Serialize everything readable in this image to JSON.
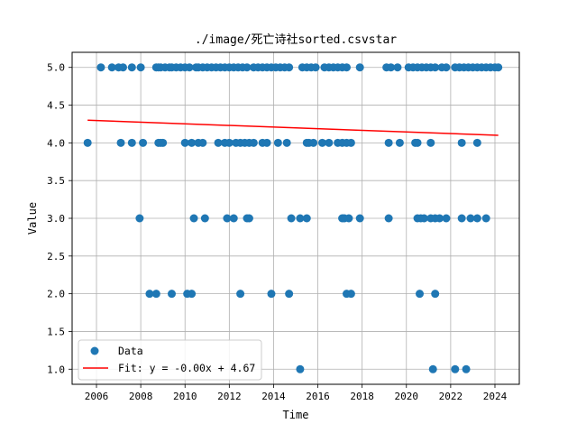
{
  "chart_data": {
    "type": "scatter",
    "title": "./image/死亡诗社sorted.csvstar",
    "xlabel": "Time",
    "ylabel": "Value",
    "xlim": [
      2004.9,
      2025.1
    ],
    "ylim": [
      0.8,
      5.2
    ],
    "x_ticks": [
      2006,
      2008,
      2010,
      2012,
      2014,
      2016,
      2018,
      2020,
      2022,
      2024
    ],
    "y_ticks": [
      1.0,
      1.5,
      2.0,
      2.5,
      3.0,
      3.5,
      4.0,
      4.5,
      5.0
    ],
    "grid": true,
    "legend": {
      "position": "lower left",
      "entries": [
        "Data",
        "Fit: y = -0.00x + 4.67"
      ]
    },
    "series": [
      {
        "name": "Data",
        "color": "#1f77b4",
        "points": [
          [
            2005.6,
            4
          ],
          [
            2006.2,
            5
          ],
          [
            2006.7,
            5
          ],
          [
            2007.0,
            5
          ],
          [
            2007.2,
            5
          ],
          [
            2007.6,
            5
          ],
          [
            2008.0,
            5
          ],
          [
            2008.7,
            5
          ],
          [
            2008.8,
            5
          ],
          [
            2008.9,
            5
          ],
          [
            2009.1,
            5
          ],
          [
            2009.3,
            5
          ],
          [
            2009.4,
            5
          ],
          [
            2009.6,
            5
          ],
          [
            2009.8,
            5
          ],
          [
            2010.0,
            5
          ],
          [
            2010.2,
            5
          ],
          [
            2010.5,
            5
          ],
          [
            2010.6,
            5
          ],
          [
            2010.8,
            5
          ],
          [
            2011.0,
            5
          ],
          [
            2011.2,
            5
          ],
          [
            2011.4,
            5
          ],
          [
            2011.6,
            5
          ],
          [
            2011.8,
            5
          ],
          [
            2012.0,
            5
          ],
          [
            2012.2,
            5
          ],
          [
            2012.4,
            5
          ],
          [
            2012.6,
            5
          ],
          [
            2012.8,
            5
          ],
          [
            2013.1,
            5
          ],
          [
            2013.3,
            5
          ],
          [
            2013.5,
            5
          ],
          [
            2013.7,
            5
          ],
          [
            2013.9,
            5
          ],
          [
            2014.1,
            5
          ],
          [
            2014.3,
            5
          ],
          [
            2014.5,
            5
          ],
          [
            2014.7,
            5
          ],
          [
            2015.3,
            5
          ],
          [
            2015.5,
            5
          ],
          [
            2015.7,
            5
          ],
          [
            2015.9,
            5
          ],
          [
            2016.3,
            5
          ],
          [
            2016.5,
            5
          ],
          [
            2016.7,
            5
          ],
          [
            2016.9,
            5
          ],
          [
            2017.1,
            5
          ],
          [
            2017.3,
            5
          ],
          [
            2017.9,
            5
          ],
          [
            2019.1,
            5
          ],
          [
            2019.3,
            5
          ],
          [
            2019.6,
            5
          ],
          [
            2020.1,
            5
          ],
          [
            2020.3,
            5
          ],
          [
            2020.5,
            5
          ],
          [
            2020.7,
            5
          ],
          [
            2020.9,
            5
          ],
          [
            2021.1,
            5
          ],
          [
            2021.3,
            5
          ],
          [
            2021.6,
            5
          ],
          [
            2021.8,
            5
          ],
          [
            2022.2,
            5
          ],
          [
            2022.4,
            5
          ],
          [
            2022.6,
            5
          ],
          [
            2022.8,
            5
          ],
          [
            2023.0,
            5
          ],
          [
            2023.2,
            5
          ],
          [
            2023.4,
            5
          ],
          [
            2023.6,
            5
          ],
          [
            2023.8,
            5
          ],
          [
            2024.0,
            5
          ],
          [
            2024.15,
            5
          ],
          [
            2007.1,
            4
          ],
          [
            2007.6,
            4
          ],
          [
            2008.1,
            4
          ],
          [
            2008.8,
            4
          ],
          [
            2008.9,
            4
          ],
          [
            2009.0,
            4
          ],
          [
            2010.0,
            4
          ],
          [
            2010.3,
            4
          ],
          [
            2010.6,
            4
          ],
          [
            2010.8,
            4
          ],
          [
            2011.5,
            4
          ],
          [
            2011.8,
            4
          ],
          [
            2012.0,
            4
          ],
          [
            2012.3,
            4
          ],
          [
            2012.5,
            4
          ],
          [
            2012.7,
            4
          ],
          [
            2012.9,
            4
          ],
          [
            2013.1,
            4
          ],
          [
            2013.5,
            4
          ],
          [
            2013.7,
            4
          ],
          [
            2014.2,
            4
          ],
          [
            2014.6,
            4
          ],
          [
            2015.5,
            4
          ],
          [
            2015.6,
            4
          ],
          [
            2015.8,
            4
          ],
          [
            2016.2,
            4
          ],
          [
            2016.5,
            4
          ],
          [
            2016.9,
            4
          ],
          [
            2017.1,
            4
          ],
          [
            2017.3,
            4
          ],
          [
            2017.5,
            4
          ],
          [
            2019.2,
            4
          ],
          [
            2019.7,
            4
          ],
          [
            2020.4,
            4
          ],
          [
            2020.5,
            4
          ],
          [
            2021.1,
            4
          ],
          [
            2022.5,
            4
          ],
          [
            2023.2,
            4
          ],
          [
            2007.95,
            3
          ],
          [
            2010.4,
            3
          ],
          [
            2010.9,
            3
          ],
          [
            2011.9,
            3
          ],
          [
            2012.2,
            3
          ],
          [
            2012.8,
            3
          ],
          [
            2012.9,
            3
          ],
          [
            2014.8,
            3
          ],
          [
            2015.2,
            3
          ],
          [
            2015.5,
            3
          ],
          [
            2017.1,
            3
          ],
          [
            2017.2,
            3
          ],
          [
            2017.4,
            3
          ],
          [
            2017.9,
            3
          ],
          [
            2019.2,
            3
          ],
          [
            2020.5,
            3
          ],
          [
            2020.65,
            3
          ],
          [
            2020.8,
            3
          ],
          [
            2021.1,
            3
          ],
          [
            2021.3,
            3
          ],
          [
            2021.5,
            3
          ],
          [
            2021.8,
            3
          ],
          [
            2022.5,
            3
          ],
          [
            2022.9,
            3
          ],
          [
            2023.2,
            3
          ],
          [
            2023.6,
            3
          ],
          [
            2008.4,
            2
          ],
          [
            2008.7,
            2
          ],
          [
            2009.4,
            2
          ],
          [
            2010.1,
            2
          ],
          [
            2010.3,
            2
          ],
          [
            2012.5,
            2
          ],
          [
            2013.9,
            2
          ],
          [
            2014.7,
            2
          ],
          [
            2017.3,
            2
          ],
          [
            2017.5,
            2
          ],
          [
            2020.6,
            2
          ],
          [
            2021.3,
            2
          ],
          [
            2015.2,
            1
          ],
          [
            2021.2,
            1
          ],
          [
            2022.2,
            1
          ],
          [
            2022.7,
            1
          ]
        ]
      }
    ],
    "fit": {
      "name": "Fit: y = -0.00x + 4.67",
      "color": "#ff0000",
      "x": [
        2005.6,
        2024.15
      ],
      "y": [
        4.3,
        4.1
      ]
    }
  }
}
